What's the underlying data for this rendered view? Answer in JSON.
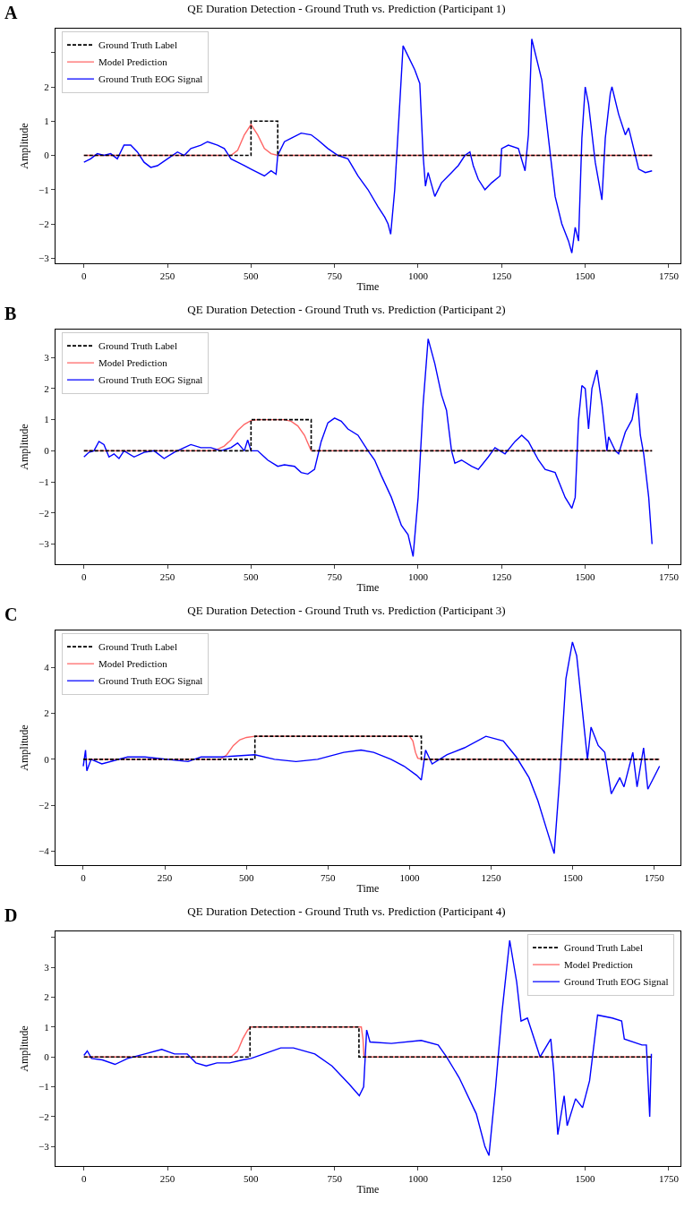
{
  "chart_data": [
    {
      "type": "line",
      "title": "QE Duration Detection - Ground Truth vs. Prediction (Participant 1)",
      "xlabel": "Time",
      "ylabel": "Amplitude",
      "annotations": [
        "A"
      ],
      "legend": "top left",
      "grid": false,
      "xlim": [
        -85,
        1785
      ],
      "xticks": [
        0,
        250,
        500,
        750,
        1000,
        1250,
        1500,
        1750
      ],
      "ylim": [
        -3.15,
        3.7
      ],
      "yticks": [
        -3,
        -2,
        -1,
        0,
        1,
        2,
        {
          "value": 3,
          "label": null
        }
      ],
      "series": [
        {
          "name": "Ground Truth Label",
          "color": "#000000",
          "line_style": "dashed",
          "x": [
            0,
            500,
            500,
            580,
            580,
            1700
          ],
          "values": [
            0,
            0,
            1,
            1,
            0,
            0
          ]
        },
        {
          "name": "Model Prediction",
          "color": "#ff6666",
          "line_style": "solid",
          "x": [
            0,
            440,
            460,
            480,
            500,
            520,
            540,
            560,
            580,
            1700
          ],
          "values": [
            0,
            0,
            0.15,
            0.6,
            0.9,
            0.6,
            0.2,
            0.05,
            0,
            0
          ]
        },
        {
          "name": "Ground Truth EOG Signal",
          "color": "#0000ff",
          "line_style": "solid",
          "x": [
            0,
            20,
            40,
            60,
            80,
            100,
            120,
            140,
            160,
            180,
            200,
            220,
            250,
            280,
            300,
            320,
            350,
            370,
            400,
            420,
            440,
            460,
            480,
            500,
            520,
            540,
            560,
            575,
            580,
            600,
            620,
            650,
            680,
            700,
            730,
            760,
            790,
            820,
            850,
            880,
            900,
            910,
            918,
            930,
            945,
            955,
            970,
            990,
            1005,
            1015,
            1022,
            1030,
            1050,
            1070,
            1100,
            1120,
            1140,
            1155,
            1165,
            1180,
            1200,
            1220,
            1245,
            1250,
            1270,
            1300,
            1320,
            1330,
            1340,
            1355,
            1370,
            1390,
            1410,
            1430,
            1450,
            1460,
            1470,
            1480,
            1490,
            1500,
            1510,
            1530,
            1550,
            1560,
            1575,
            1580,
            1600,
            1620,
            1630,
            1650,
            1660,
            1680,
            1700
          ],
          "values": [
            -0.2,
            -0.1,
            0.05,
            0,
            0.05,
            -0.1,
            0.3,
            0.3,
            0.1,
            -0.2,
            -0.35,
            -0.3,
            -0.1,
            0.1,
            0,
            0.2,
            0.3,
            0.4,
            0.3,
            0.2,
            -0.1,
            -0.2,
            -0.3,
            -0.4,
            -0.5,
            -0.6,
            -0.45,
            -0.55,
            0,
            0.4,
            0.5,
            0.65,
            0.6,
            0.45,
            0.2,
            0,
            -0.1,
            -0.6,
            -1,
            -1.5,
            -1.8,
            -2,
            -2.3,
            -1,
            1.5,
            3.2,
            2.9,
            2.5,
            2.1,
            0,
            -0.9,
            -0.5,
            -1.2,
            -0.8,
            -0.5,
            -0.3,
            0,
            0.1,
            -0.3,
            -0.7,
            -1,
            -0.8,
            -0.6,
            0.2,
            0.3,
            0.2,
            -0.45,
            0.6,
            3.4,
            2.8,
            2.2,
            0.5,
            -1.2,
            -2,
            -2.5,
            -2.85,
            -2.1,
            -2.5,
            0.5,
            2,
            1.5,
            -0.2,
            -1.3,
            0.5,
            1.8,
            2,
            1.2,
            0.6,
            0.8,
            0,
            -0.4,
            -0.5,
            -0.45
          ]
        }
      ]
    },
    {
      "type": "line",
      "title": "QE Duration Detection - Ground Truth vs. Prediction (Participant 2)",
      "xlabel": "Time",
      "ylabel": "Amplitude",
      "annotations": [
        "B"
      ],
      "legend": "top left",
      "grid": false,
      "xlim": [
        -85,
        1785
      ],
      "xticks": [
        0,
        250,
        500,
        750,
        1000,
        1250,
        1500,
        1750
      ],
      "ylim": [
        -3.65,
        3.9
      ],
      "yticks": [
        -3,
        -2,
        -1,
        0,
        1,
        2,
        3
      ],
      "series": [
        {
          "name": "Ground Truth Label",
          "color": "#000000",
          "line_style": "dashed",
          "x": [
            0,
            500,
            500,
            680,
            680,
            1700
          ],
          "values": [
            0,
            0,
            1,
            1,
            0,
            0
          ]
        },
        {
          "name": "Model Prediction",
          "color": "#ff6666",
          "line_style": "solid",
          "x": [
            0,
            380,
            400,
            420,
            440,
            460,
            480,
            500,
            520,
            600,
            620,
            640,
            660,
            670,
            680,
            1700
          ],
          "values": [
            0,
            0,
            0.05,
            0.15,
            0.35,
            0.65,
            0.85,
            0.97,
            1,
            1,
            0.95,
            0.8,
            0.5,
            0.25,
            0,
            0
          ]
        },
        {
          "name": "Ground Truth EOG Signal",
          "color": "#0000ff",
          "line_style": "solid",
          "x": [
            0,
            15,
            30,
            45,
            60,
            75,
            90,
            105,
            120,
            150,
            180,
            210,
            240,
            270,
            300,
            320,
            350,
            380,
            410,
            440,
            460,
            480,
            490,
            500,
            520,
            550,
            580,
            600,
            630,
            650,
            670,
            690,
            710,
            730,
            750,
            770,
            790,
            820,
            850,
            870,
            890,
            920,
            950,
            970,
            985,
            1000,
            1015,
            1030,
            1050,
            1070,
            1085,
            1100,
            1110,
            1130,
            1160,
            1180,
            1210,
            1230,
            1260,
            1290,
            1310,
            1330,
            1360,
            1380,
            1410,
            1440,
            1460,
            1470,
            1480,
            1490,
            1500,
            1510,
            1520,
            1535,
            1550,
            1565,
            1570,
            1590,
            1600,
            1620,
            1640,
            1655,
            1665,
            1675,
            1690,
            1700
          ],
          "values": [
            -0.2,
            -0.05,
            0,
            0.3,
            0.2,
            -0.2,
            -0.1,
            -0.25,
            0,
            -0.2,
            -0.05,
            0,
            -0.25,
            -0.05,
            0.1,
            0.2,
            0.1,
            0.1,
            0,
            0.1,
            0.25,
            0,
            0.35,
            0,
            0,
            -0.3,
            -0.5,
            -0.45,
            -0.5,
            -0.7,
            -0.75,
            -0.6,
            0.3,
            0.9,
            1.05,
            0.95,
            0.7,
            0.5,
            0,
            -0.3,
            -0.8,
            -1.5,
            -2.4,
            -2.7,
            -3.4,
            -1.5,
            1.5,
            3.6,
            2.8,
            1.8,
            1.3,
            0,
            -0.4,
            -0.3,
            -0.5,
            -0.6,
            -0.2,
            0.1,
            -0.1,
            0.3,
            0.5,
            0.3,
            -0.3,
            -0.6,
            -0.7,
            -1.5,
            -1.85,
            -1.5,
            1,
            2.1,
            2,
            0.7,
            2,
            2.6,
            1.5,
            0,
            0.45,
            0,
            -0.1,
            0.6,
            1,
            1.85,
            0.5,
            -0.1,
            -1.5,
            -3
          ]
        }
      ]
    },
    {
      "type": "line",
      "title": "QE Duration Detection - Ground Truth vs. Prediction (Participant 3)",
      "xlabel": "Time",
      "ylabel": "Amplitude",
      "annotations": [
        "C"
      ],
      "legend": "top left",
      "grid": false,
      "xlim": [
        -85,
        1830
      ],
      "xticks": [
        0,
        250,
        500,
        750,
        1000,
        1250,
        1500,
        1750
      ],
      "ylim": [
        -4.6,
        5.6
      ],
      "yticks": [
        -4,
        -2,
        0,
        2,
        4
      ],
      "series": [
        {
          "name": "Ground Truth Label",
          "color": "#000000",
          "line_style": "dashed",
          "x": [
            0,
            526,
            526,
            1036,
            1036,
            1766
          ],
          "values": [
            0,
            0,
            1,
            1,
            0,
            0
          ]
        },
        {
          "name": "Model Prediction",
          "color": "#ff6666",
          "line_style": "solid",
          "x": [
            0,
            421,
            440,
            460,
            480,
            500,
            526,
            1000,
            1010,
            1018,
            1025,
            1040,
            1766
          ],
          "values": [
            0,
            0,
            0.2,
            0.6,
            0.85,
            0.95,
            1,
            1,
            0.8,
            0.3,
            0.05,
            0,
            0
          ]
        },
        {
          "name": "Ground Truth EOG Signal",
          "color": "#0000ff",
          "line_style": "solid",
          "x": [
            0,
            7,
            11,
            24,
            57,
            136,
            189,
            321,
            361,
            421,
            526,
            586,
            652,
            718,
            798,
            851,
            890,
            943,
            983,
            1022,
            1036,
            1049,
            1069,
            1115,
            1168,
            1234,
            1287,
            1327,
            1366,
            1393,
            1419,
            1443,
            1459,
            1479,
            1499,
            1512,
            1545,
            1556,
            1578,
            1598,
            1618,
            1644,
            1657,
            1684,
            1697,
            1717,
            1730,
            1766
          ],
          "values": [
            -0.3,
            0.4,
            -0.5,
            0,
            -0.2,
            0.1,
            0.1,
            -0.1,
            0.1,
            0.1,
            0.2,
            0,
            -0.1,
            0,
            0.3,
            0.4,
            0.3,
            0,
            -0.3,
            -0.7,
            -0.9,
            0.4,
            -0.2,
            0.2,
            0.5,
            1,
            0.8,
            0.1,
            -0.8,
            -1.8,
            -3,
            -4.1,
            -1,
            3.5,
            5.1,
            4.5,
            0,
            1.4,
            0.6,
            0.3,
            -1.5,
            -0.8,
            -1.2,
            0.3,
            -1.2,
            0.5,
            -1.3,
            -0.3
          ]
        }
      ]
    },
    {
      "type": "line",
      "title": "QE Duration Detection - Ground Truth vs. Prediction (Participant 4)",
      "xlabel": "Time",
      "ylabel": "Amplitude",
      "annotations": [
        "D"
      ],
      "legend": "top right",
      "grid": false,
      "xlim": [
        -85,
        1785
      ],
      "xticks": [
        0,
        250,
        500,
        750,
        1000,
        1250,
        1500,
        1750
      ],
      "ylim": [
        -3.65,
        4.2
      ],
      "yticks": [
        -3,
        -2,
        -1,
        0,
        1,
        2,
        3,
        {
          "value": 4,
          "label": null
        }
      ],
      "series": [
        {
          "name": "Ground Truth Label",
          "color": "#000000",
          "line_style": "dashed",
          "x": [
            0,
            497,
            497,
            823,
            823,
            1700
          ],
          "values": [
            0,
            0,
            1,
            1,
            0,
            0
          ]
        },
        {
          "name": "Model Prediction",
          "color": "#ff6666",
          "line_style": "solid",
          "x": [
            0,
            440,
            460,
            475,
            490,
            500,
            830,
            835,
            838,
            1700
          ],
          "values": [
            0,
            0,
            0.2,
            0.6,
            0.9,
            1,
            1,
            0.6,
            0,
            0
          ]
        },
        {
          "name": "Ground Truth EOG Signal",
          "color": "#0000ff",
          "line_style": "solid",
          "x": [
            0,
            10,
            23,
            55,
            93,
            131,
            182,
            233,
            271,
            309,
            335,
            366,
            398,
            436,
            475,
            500,
            538,
            589,
            627,
            691,
            742,
            793,
            824,
            837,
            846,
            856,
            920,
            1009,
            1060,
            1085,
            1123,
            1174,
            1200,
            1212,
            1232,
            1251,
            1274,
            1295,
            1308,
            1327,
            1365,
            1397,
            1406,
            1418,
            1437,
            1446,
            1471,
            1492,
            1513,
            1537,
            1581,
            1609,
            1617,
            1670,
            1683,
            1693,
            1698
          ],
          "values": [
            0.05,
            0.2,
            -0.05,
            -0.1,
            -0.25,
            -0.05,
            0.1,
            0.25,
            0.1,
            0.1,
            -0.2,
            -0.3,
            -0.2,
            -0.2,
            -0.1,
            -0.05,
            0.1,
            0.3,
            0.3,
            0.1,
            -0.3,
            -0.9,
            -1.3,
            -1,
            0.9,
            0.5,
            0.45,
            0.55,
            0.4,
            0,
            -0.7,
            -1.9,
            -3,
            -3.3,
            -1,
            1.5,
            3.9,
            2.5,
            1.2,
            1.3,
            0,
            0.6,
            -0.5,
            -2.6,
            -1.3,
            -2.3,
            -1.4,
            -1.7,
            -0.8,
            1.4,
            1.3,
            1.2,
            0.6,
            0.4,
            0.4,
            -2,
            0.1
          ]
        }
      ]
    }
  ]
}
